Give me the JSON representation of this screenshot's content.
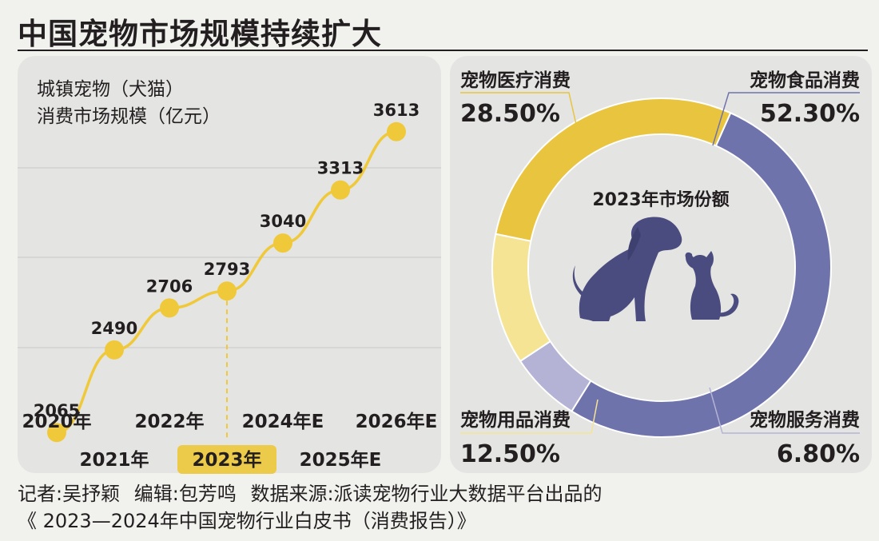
{
  "header": {
    "title": "中国宠物市场规模持续扩大"
  },
  "left_chart_labels": {
    "ylabel_line1": "城镇宠物（犬猫）",
    "ylabel_line2": "消费市场规模（亿元）"
  },
  "donut_center": {
    "label": "2023年市场份额"
  },
  "footer": {
    "reporter": "记者:吴抒颖",
    "editor": "编辑:包芳鸣",
    "source": "数据来源:派读宠物行业大数据平台出品的",
    "source_title": "《 2023—2024年中国宠物行业白皮书（消费报告）》"
  },
  "colors": {
    "line": "#f0c93a",
    "marker": "#f0c93a",
    "highlight_tag": "#eccb4a",
    "slice_food": "#6f73ac",
    "slice_medical": "#e9c43f",
    "slice_supplies": "#f5e494",
    "slice_service": "#b4b3d6",
    "silhouette": "#4a4c7f",
    "grid": "#c8c8c6"
  },
  "chart_data": [
    {
      "type": "line",
      "x": [
        "2020年",
        "2021年",
        "2022年",
        "2023年",
        "2024年E",
        "2025年E",
        "2026年E"
      ],
      "values": [
        2065,
        2490,
        2706,
        2793,
        3040,
        3313,
        3613
      ],
      "data_labels": [
        "2065",
        "2490",
        "2706",
        "2793",
        "3040",
        "3313",
        "3613"
      ],
      "highlight": "2023年",
      "ylabel": "城镇宠物（犬猫）消费市场规模（亿元）",
      "ylim": [
        1700,
        3900
      ],
      "grid": "horizontal",
      "series": [
        {
          "values": [
            2065,
            2490,
            2706,
            2793,
            3040,
            3313,
            3613
          ]
        }
      ]
    },
    {
      "type": "pie",
      "title": "2023年市场份额",
      "slices": [
        {
          "label": "宠物食品消费",
          "value": 52.3,
          "display": "52.30%",
          "color_key": "slice_food"
        },
        {
          "label": "宠物服务消费",
          "value": 6.8,
          "display": "6.80%",
          "color_key": "slice_service"
        },
        {
          "label": "宠物用品消费",
          "value": 12.5,
          "display": "12.50%",
          "color_key": "slice_supplies"
        },
        {
          "label": "宠物医疗消费",
          "value": 28.5,
          "display": "28.50%",
          "color_key": "slice_medical"
        }
      ]
    }
  ]
}
